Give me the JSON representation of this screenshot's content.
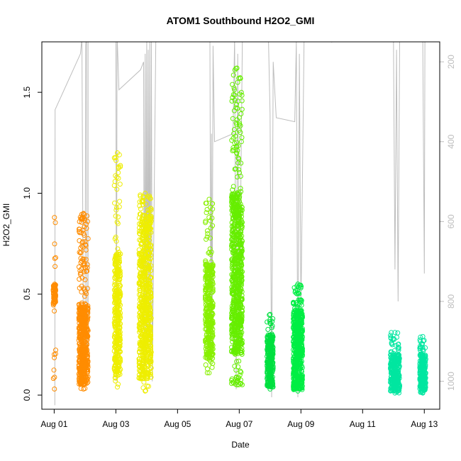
{
  "chart_data": {
    "type": "scatter",
    "title": "ATOM1 Southbound H2O2_GMI",
    "xlabel": "Date",
    "ylabel": "H2O2_GMI",
    "x_unit": "days (Aug 01 = 0)",
    "xlim": [
      -0.4,
      12.5
    ],
    "ylim": [
      -0.07,
      1.75
    ],
    "y_ticks": [
      "0.0",
      "0.5",
      "1.0",
      "1.5"
    ],
    "y_tick_values": [
      0.0,
      0.5,
      1.0,
      1.5
    ],
    "x_ticks": [
      "Aug 01",
      "Aug 03",
      "Aug 05",
      "Aug 07",
      "Aug 09",
      "Aug 11",
      "Aug 13"
    ],
    "x_tick_values": [
      0,
      2,
      4,
      6,
      8,
      10,
      12
    ],
    "secondary_axis": {
      "side": "right",
      "label": "",
      "ylim": [
        1070,
        150
      ],
      "reversed": true,
      "ticks": [
        "200",
        "400",
        "600",
        "800",
        "1000"
      ],
      "tick_values": [
        200,
        400,
        600,
        800,
        1000
      ],
      "color": "#bdbdbd"
    },
    "grid": false,
    "legend": "none",
    "profile_color": "#bdbdbd",
    "profile": [
      [
        0.02,
        1060
      ],
      [
        0.03,
        320
      ],
      [
        0.85,
        180
      ],
      [
        0.9,
        140
      ],
      [
        0.92,
        120
      ],
      [
        0.9,
        140
      ],
      [
        0.92,
        480
      ],
      [
        0.95,
        960
      ],
      [
        1.0,
        1000
      ],
      [
        1.02,
        160
      ],
      [
        1.05,
        120
      ],
      [
        1.06,
        920
      ],
      [
        1.1,
        900
      ],
      [
        1.1,
        150
      ],
      [
        1.15,
        130
      ],
      [
        1.18,
        150
      ],
      [
        1.9,
        120
      ],
      [
        2.0,
        120
      ],
      [
        2.02,
        1000
      ],
      [
        2.04,
        130
      ],
      [
        2.1,
        270
      ],
      [
        2.8,
        220
      ],
      [
        2.9,
        200
      ],
      [
        2.92,
        1000
      ],
      [
        2.95,
        180
      ],
      [
        2.97,
        950
      ],
      [
        3.0,
        150
      ],
      [
        3.02,
        930
      ],
      [
        3.05,
        170
      ],
      [
        3.07,
        900
      ],
      [
        3.1,
        150
      ],
      [
        3.12,
        960
      ],
      [
        3.15,
        140
      ],
      [
        3.18,
        1000
      ],
      [
        3.3,
        110
      ],
      [
        3.9,
        120
      ],
      [
        5.0,
        130
      ],
      [
        5.05,
        150
      ],
      [
        5.08,
        960
      ],
      [
        5.1,
        380
      ],
      [
        5.12,
        920
      ],
      [
        5.15,
        160
      ],
      [
        5.2,
        400
      ],
      [
        5.8,
        380
      ],
      [
        5.85,
        140
      ],
      [
        5.9,
        1020
      ],
      [
        5.95,
        180
      ],
      [
        6.0,
        900
      ],
      [
        6.1,
        150
      ],
      [
        6.2,
        140
      ],
      [
        6.9,
        130
      ],
      [
        6.95,
        150
      ],
      [
        7.0,
        330
      ],
      [
        7.05,
        1040
      ],
      [
        7.1,
        200
      ],
      [
        7.2,
        340
      ],
      [
        7.8,
        350
      ],
      [
        7.85,
        150
      ],
      [
        7.9,
        1040
      ],
      [
        7.95,
        180
      ],
      [
        8.0,
        820
      ],
      [
        8.1,
        150
      ],
      [
        8.2,
        140
      ],
      [
        8.9,
        130
      ],
      [
        9.0,
        150
      ],
      [
        9.05,
        130
      ],
      [
        9.1,
        140
      ],
      [
        9.9,
        150
      ],
      [
        10.0,
        140
      ],
      [
        10.9,
        140
      ],
      [
        11.0,
        150
      ],
      [
        11.05,
        720
      ],
      [
        11.1,
        170
      ],
      [
        11.15,
        800
      ],
      [
        11.2,
        150
      ],
      [
        11.3,
        150
      ],
      [
        11.9,
        150
      ],
      [
        11.95,
        150
      ],
      [
        12.0,
        730
      ],
      [
        12.02,
        150
      ]
    ],
    "series": [
      {
        "name": "",
        "color": "#ff8c00",
        "x_range": [
          -0.03,
          0.05
        ],
        "y_range": [
          0.03,
          0.88
        ],
        "dense_range": [
          0.44,
          0.55
        ],
        "n": 70
      },
      {
        "name": "",
        "color": "#ff8c00",
        "x_range": [
          0.8,
          1.1
        ],
        "y_range": [
          0.03,
          0.9
        ],
        "dense_range": [
          0.05,
          0.45
        ],
        "n": 520
      },
      {
        "name": "",
        "color": "#eeee00",
        "x_range": [
          1.95,
          2.15
        ],
        "y_range": [
          0.04,
          1.2
        ],
        "dense_range": [
          0.1,
          0.7
        ],
        "n": 360
      },
      {
        "name": "",
        "color": "#eeee00",
        "x_range": [
          2.75,
          3.15
        ],
        "y_range": [
          0.02,
          1.0
        ],
        "dense_range": [
          0.08,
          0.9
        ],
        "n": 700
      },
      {
        "name": "",
        "color": "#88f000",
        "x_range": [
          4.9,
          5.15
        ],
        "y_range": [
          0.11,
          0.97
        ],
        "dense_range": [
          0.18,
          0.65
        ],
        "n": 360
      },
      {
        "name": "",
        "color": "#66ee00",
        "x_range": [
          5.75,
          6.1
        ],
        "y_range": [
          0.05,
          1.62
        ],
        "dense_range": [
          0.2,
          1.0
        ],
        "n": 780
      },
      {
        "name": "",
        "color": "#00e040",
        "x_range": [
          6.9,
          7.1
        ],
        "y_range": [
          0.03,
          0.4
        ],
        "dense_range": [
          0.04,
          0.3
        ],
        "n": 300
      },
      {
        "name": "",
        "color": "#00ee44",
        "x_range": [
          7.75,
          8.05
        ],
        "y_range": [
          0.02,
          0.55
        ],
        "dense_range": [
          0.03,
          0.42
        ],
        "n": 520
      },
      {
        "name": "",
        "color": "#00e6a0",
        "x_range": [
          10.9,
          11.2
        ],
        "y_range": [
          0.01,
          0.31
        ],
        "dense_range": [
          0.02,
          0.2
        ],
        "n": 260
      },
      {
        "name": "",
        "color": "#00e6a0",
        "x_range": [
          11.85,
          12.05
        ],
        "y_range": [
          0.01,
          0.29
        ],
        "dense_range": [
          0.02,
          0.2
        ],
        "n": 240
      }
    ]
  }
}
